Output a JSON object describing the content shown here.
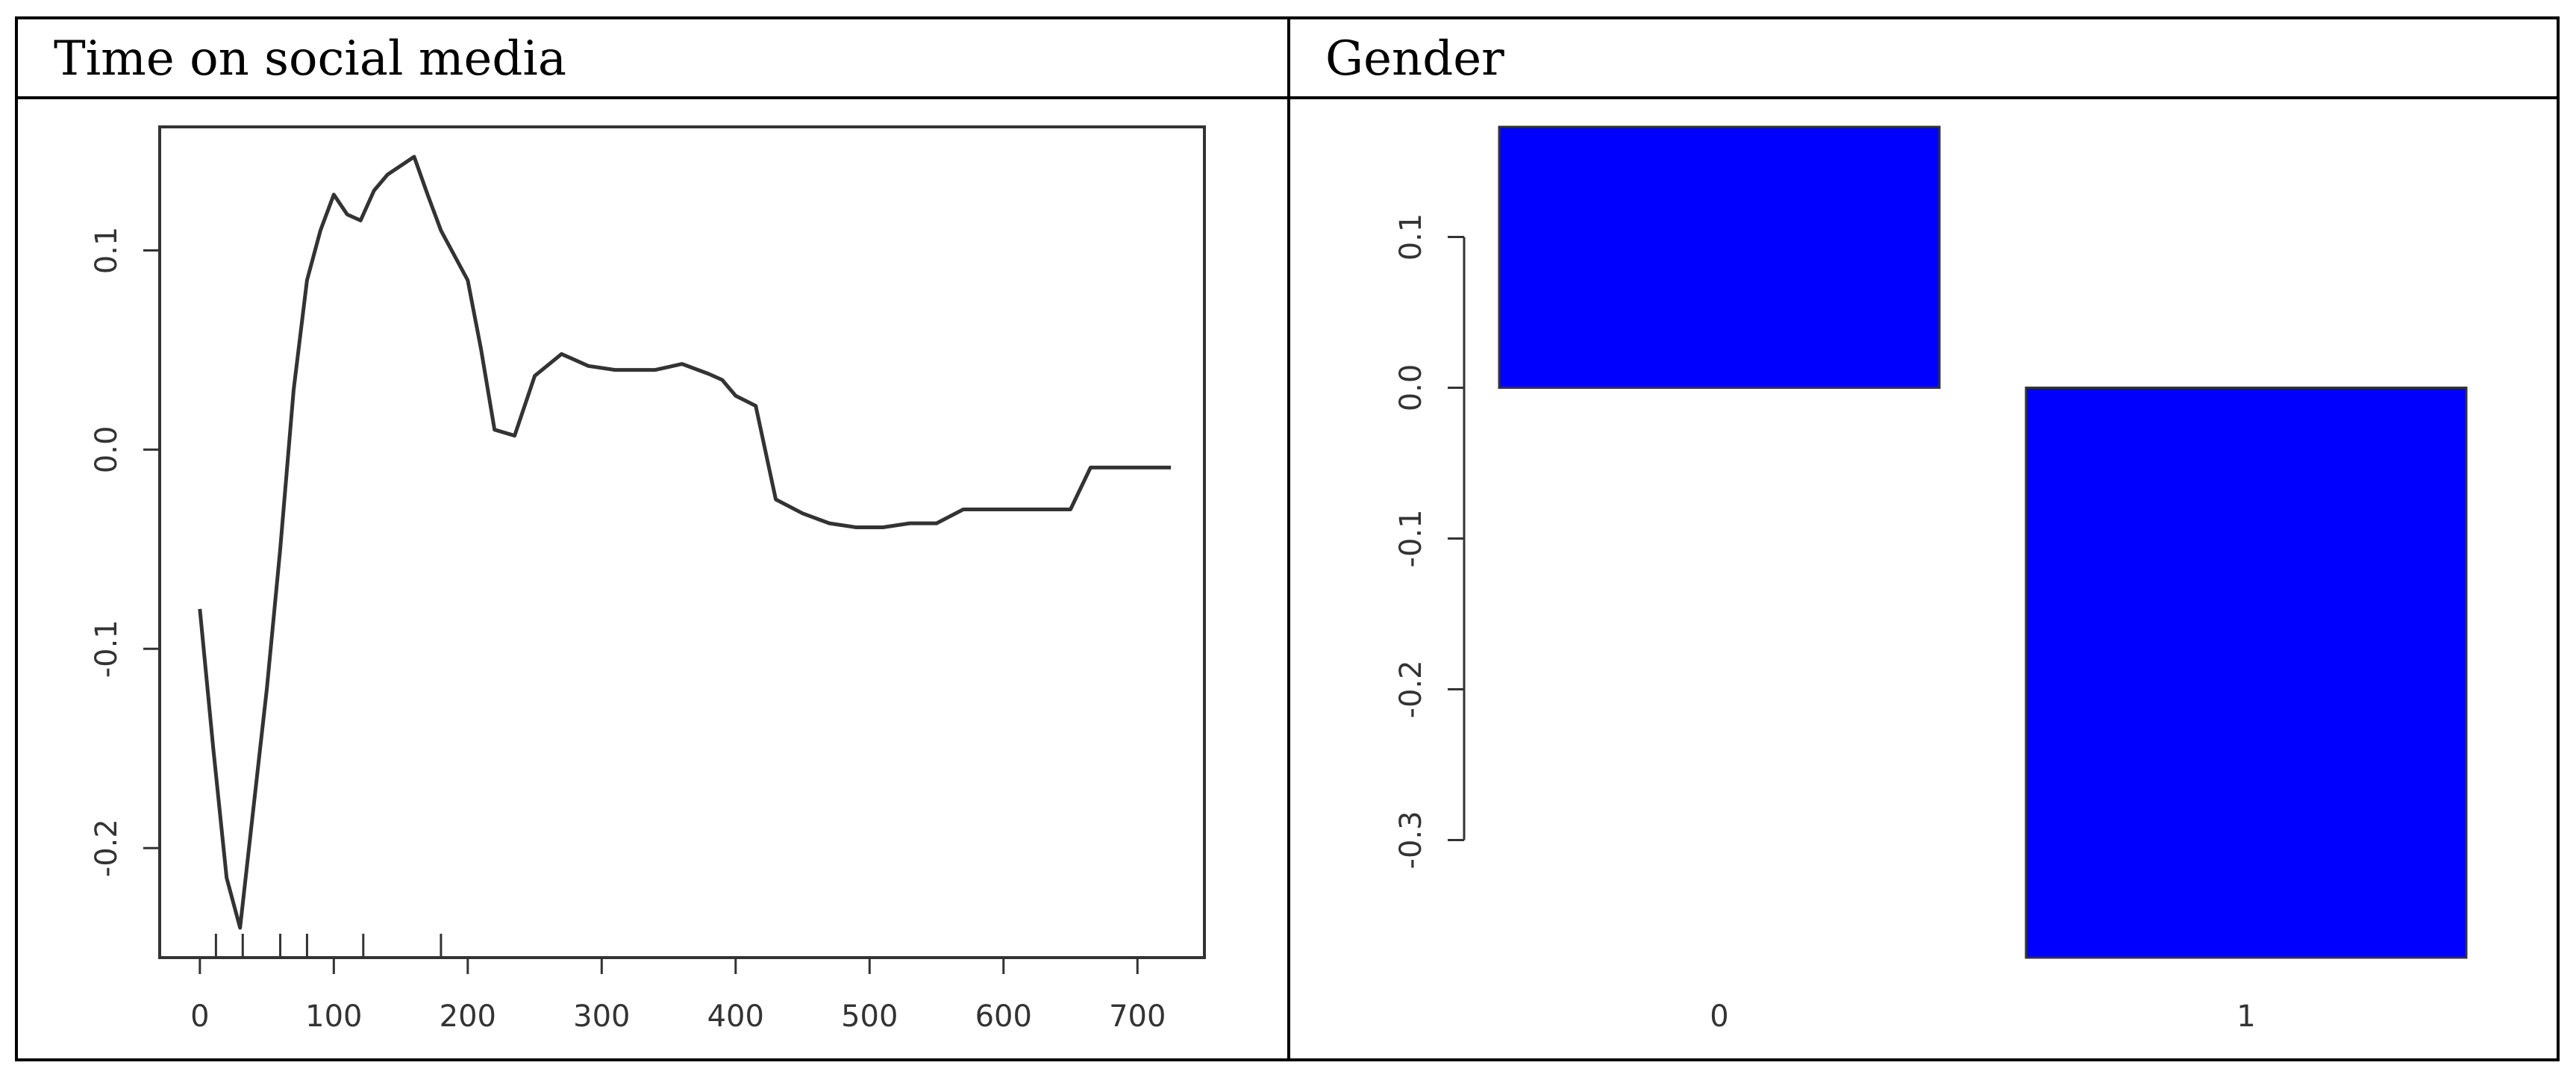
{
  "headers": {
    "left": "Time on social media",
    "right": "Gender"
  },
  "chart_data": [
    {
      "type": "line",
      "title": "Time on social media",
      "xlabel": "",
      "ylabel": "",
      "xlim": [
        -30,
        750
      ],
      "ylim": [
        -0.255,
        0.162
      ],
      "x_ticks": [
        "0",
        "100",
        "200",
        "300",
        "400",
        "500",
        "600",
        "700"
      ],
      "y_ticks": [
        "-0.2",
        "-0.1",
        "0.0",
        "0.1"
      ],
      "series": [
        {
          "x": [
            0,
            10,
            20,
            30,
            40,
            50,
            60,
            70,
            80,
            90,
            100,
            110,
            120,
            130,
            140,
            160,
            170,
            180,
            200,
            210,
            220,
            235,
            250,
            270,
            290,
            310,
            340,
            360,
            380,
            390,
            400,
            415,
            430,
            450,
            470,
            490,
            510,
            530,
            550,
            570,
            590,
            610,
            640,
            650,
            665,
            680,
            700,
            725
          ],
          "y": [
            -0.08,
            -0.15,
            -0.215,
            -0.24,
            -0.18,
            -0.12,
            -0.05,
            0.03,
            0.085,
            0.11,
            0.128,
            0.118,
            0.115,
            0.13,
            0.138,
            0.147,
            0.128,
            0.11,
            0.085,
            0.05,
            0.01,
            0.007,
            0.037,
            0.048,
            0.042,
            0.04,
            0.04,
            0.043,
            0.038,
            0.035,
            0.027,
            0.022,
            -0.025,
            -0.032,
            -0.037,
            -0.039,
            -0.039,
            -0.037,
            -0.037,
            -0.03,
            -0.03,
            -0.03,
            -0.03,
            -0.03,
            -0.009,
            -0.009,
            -0.009,
            -0.009
          ]
        }
      ],
      "rug": [
        12,
        32,
        60,
        80,
        122,
        180
      ]
    },
    {
      "type": "bar",
      "title": "Gender",
      "xlabel": "",
      "ylabel": "",
      "categories": [
        "0",
        "1"
      ],
      "values": [
        0.173,
        -0.378
      ],
      "ylim": [
        -0.378,
        0.173
      ],
      "y_ticks": [
        "-0.3",
        "-0.2",
        "-0.1",
        "0.0",
        "0.1"
      ],
      "colors": {
        "bar_fill": "#0000ff",
        "bar_stroke": "#333333"
      }
    }
  ]
}
